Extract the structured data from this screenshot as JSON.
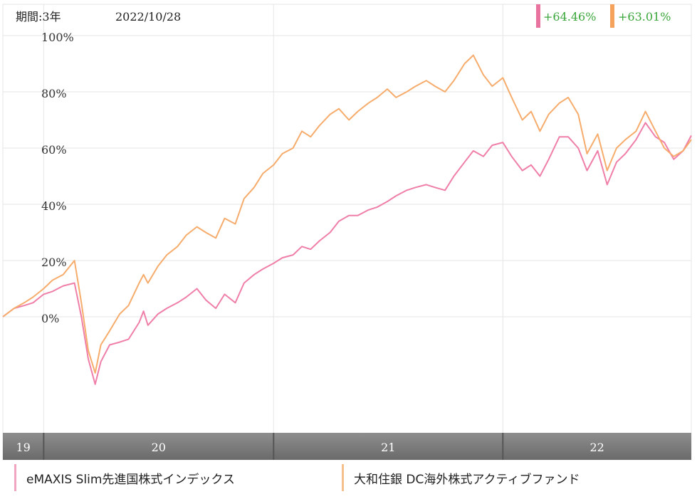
{
  "header": {
    "period": "期間:3年",
    "date": "2022/10/28",
    "series_returns": [
      {
        "text": "+64.46%",
        "color": "#e8739e"
      },
      {
        "text": "+63.01%",
        "color": "#f5a25d"
      }
    ]
  },
  "legend": {
    "items": [
      {
        "label": "eMAXIS Slim先進国株式インデックス",
        "color": "#f0a6c0"
      },
      {
        "label": "大和住銀 DC海外株式アクティブファンド",
        "color": "#f5c08c"
      }
    ]
  },
  "chart_data": {
    "type": "line",
    "x_start": "2019-10-28",
    "x_end": "2022-10-28",
    "x_ticks": [
      {
        "label": "19",
        "date": "2019-10-28"
      },
      {
        "label": "20",
        "date": "2020-01-01"
      },
      {
        "label": "21",
        "date": "2021-01-01"
      },
      {
        "label": "22",
        "date": "2022-01-01"
      }
    ],
    "y_ticks": [
      "100%",
      "80%",
      "60%",
      "40%",
      "20%",
      "0%"
    ],
    "y_tick_values": [
      100,
      80,
      60,
      40,
      20,
      0
    ],
    "ylim": [
      -40,
      100
    ],
    "grid": true,
    "series": [
      {
        "name": "eMAXIS Slim先進国株式インデックス",
        "color": "#ef7fa8",
        "points": [
          [
            "2019-10-28",
            0
          ],
          [
            "2019-11-15",
            3
          ],
          [
            "2019-12-01",
            4
          ],
          [
            "2019-12-15",
            5
          ],
          [
            "2020-01-01",
            8
          ],
          [
            "2020-01-15",
            9
          ],
          [
            "2020-02-01",
            11
          ],
          [
            "2020-02-19",
            12
          ],
          [
            "2020-03-01",
            0
          ],
          [
            "2020-03-12",
            -15
          ],
          [
            "2020-03-23",
            -24
          ],
          [
            "2020-04-01",
            -16
          ],
          [
            "2020-04-15",
            -10
          ],
          [
            "2020-05-01",
            -9
          ],
          [
            "2020-05-15",
            -8
          ],
          [
            "2020-06-01",
            -2
          ],
          [
            "2020-06-08",
            2
          ],
          [
            "2020-06-15",
            -3
          ],
          [
            "2020-07-01",
            1
          ],
          [
            "2020-07-15",
            3
          ],
          [
            "2020-08-01",
            5
          ],
          [
            "2020-08-15",
            7
          ],
          [
            "2020-09-01",
            10
          ],
          [
            "2020-09-15",
            6
          ],
          [
            "2020-10-01",
            3
          ],
          [
            "2020-10-15",
            8
          ],
          [
            "2020-11-01",
            5
          ],
          [
            "2020-11-15",
            12
          ],
          [
            "2020-12-01",
            15
          ],
          [
            "2020-12-15",
            17
          ],
          [
            "2021-01-01",
            19
          ],
          [
            "2021-01-15",
            21
          ],
          [
            "2021-02-01",
            22
          ],
          [
            "2021-02-15",
            25
          ],
          [
            "2021-03-01",
            24
          ],
          [
            "2021-03-15",
            27
          ],
          [
            "2021-04-01",
            30
          ],
          [
            "2021-04-15",
            34
          ],
          [
            "2021-05-01",
            36
          ],
          [
            "2021-05-15",
            36
          ],
          [
            "2021-06-01",
            38
          ],
          [
            "2021-06-15",
            39
          ],
          [
            "2021-07-01",
            41
          ],
          [
            "2021-07-15",
            43
          ],
          [
            "2021-08-01",
            45
          ],
          [
            "2021-08-15",
            46
          ],
          [
            "2021-09-01",
            47
          ],
          [
            "2021-09-15",
            46
          ],
          [
            "2021-10-01",
            45
          ],
          [
            "2021-10-15",
            50
          ],
          [
            "2021-11-01",
            55
          ],
          [
            "2021-11-15",
            59
          ],
          [
            "2021-12-01",
            57
          ],
          [
            "2021-12-15",
            61
          ],
          [
            "2022-01-01",
            62
          ],
          [
            "2022-01-15",
            57
          ],
          [
            "2022-02-01",
            52
          ],
          [
            "2022-02-15",
            54
          ],
          [
            "2022-03-01",
            50
          ],
          [
            "2022-03-15",
            56
          ],
          [
            "2022-04-01",
            64
          ],
          [
            "2022-04-15",
            64
          ],
          [
            "2022-05-01",
            60
          ],
          [
            "2022-05-15",
            52
          ],
          [
            "2022-06-01",
            59
          ],
          [
            "2022-06-16",
            47
          ],
          [
            "2022-07-01",
            55
          ],
          [
            "2022-07-15",
            58
          ],
          [
            "2022-08-01",
            63
          ],
          [
            "2022-08-16",
            69
          ],
          [
            "2022-09-01",
            64
          ],
          [
            "2022-09-15",
            62
          ],
          [
            "2022-09-30",
            56
          ],
          [
            "2022-10-15",
            59
          ],
          [
            "2022-10-28",
            64.46
          ]
        ]
      },
      {
        "name": "大和住銀 DC海外株式アクティブファンド",
        "color": "#f6ac6c",
        "points": [
          [
            "2019-10-28",
            0
          ],
          [
            "2019-11-15",
            3
          ],
          [
            "2019-12-01",
            5
          ],
          [
            "2019-12-15",
            7
          ],
          [
            "2020-01-01",
            10
          ],
          [
            "2020-01-15",
            13
          ],
          [
            "2020-02-01",
            15
          ],
          [
            "2020-02-19",
            20
          ],
          [
            "2020-03-01",
            5
          ],
          [
            "2020-03-12",
            -12
          ],
          [
            "2020-03-23",
            -20
          ],
          [
            "2020-04-01",
            -10
          ],
          [
            "2020-04-15",
            -5
          ],
          [
            "2020-05-01",
            1
          ],
          [
            "2020-05-15",
            4
          ],
          [
            "2020-06-01",
            12
          ],
          [
            "2020-06-08",
            15
          ],
          [
            "2020-06-15",
            12
          ],
          [
            "2020-07-01",
            18
          ],
          [
            "2020-07-15",
            22
          ],
          [
            "2020-08-01",
            25
          ],
          [
            "2020-08-15",
            29
          ],
          [
            "2020-09-01",
            32
          ],
          [
            "2020-09-15",
            30
          ],
          [
            "2020-10-01",
            28
          ],
          [
            "2020-10-15",
            35
          ],
          [
            "2020-11-01",
            33
          ],
          [
            "2020-11-15",
            42
          ],
          [
            "2020-12-01",
            46
          ],
          [
            "2020-12-15",
            51
          ],
          [
            "2021-01-01",
            54
          ],
          [
            "2021-01-15",
            58
          ],
          [
            "2021-02-01",
            60
          ],
          [
            "2021-02-15",
            66
          ],
          [
            "2021-03-01",
            64
          ],
          [
            "2021-03-15",
            68
          ],
          [
            "2021-04-01",
            72
          ],
          [
            "2021-04-15",
            74
          ],
          [
            "2021-05-01",
            70
          ],
          [
            "2021-05-15",
            73
          ],
          [
            "2021-06-01",
            76
          ],
          [
            "2021-06-15",
            78
          ],
          [
            "2021-07-01",
            81
          ],
          [
            "2021-07-15",
            78
          ],
          [
            "2021-08-01",
            80
          ],
          [
            "2021-08-15",
            82
          ],
          [
            "2021-09-01",
            84
          ],
          [
            "2021-09-15",
            82
          ],
          [
            "2021-10-01",
            80
          ],
          [
            "2021-10-15",
            84
          ],
          [
            "2021-11-01",
            90
          ],
          [
            "2021-11-15",
            93
          ],
          [
            "2021-12-01",
            86
          ],
          [
            "2021-12-15",
            82
          ],
          [
            "2022-01-01",
            85
          ],
          [
            "2022-01-15",
            78
          ],
          [
            "2022-02-01",
            70
          ],
          [
            "2022-02-15",
            73
          ],
          [
            "2022-03-01",
            66
          ],
          [
            "2022-03-15",
            72
          ],
          [
            "2022-04-01",
            76
          ],
          [
            "2022-04-15",
            78
          ],
          [
            "2022-05-01",
            72
          ],
          [
            "2022-05-15",
            58
          ],
          [
            "2022-06-01",
            65
          ],
          [
            "2022-06-16",
            52
          ],
          [
            "2022-07-01",
            60
          ],
          [
            "2022-07-15",
            63
          ],
          [
            "2022-08-01",
            66
          ],
          [
            "2022-08-16",
            73
          ],
          [
            "2022-09-01",
            66
          ],
          [
            "2022-09-15",
            60
          ],
          [
            "2022-09-30",
            57
          ],
          [
            "2022-10-15",
            59
          ],
          [
            "2022-10-28",
            63.01
          ]
        ]
      }
    ]
  }
}
